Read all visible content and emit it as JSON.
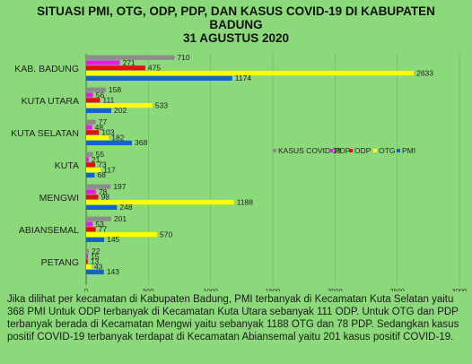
{
  "title_lines": [
    "SITUASI PMI, OTG, ODP, PDP, DAN KASUS COVID-19 DI KABUPATEN",
    "BADUNG",
    "31 AGUSTUS 2020"
  ],
  "chart_data": {
    "type": "bar",
    "orientation": "horizontal",
    "categories": [
      "KAB. BADUNG",
      "KUTA UTARA",
      "KUTA SELATAN",
      "KUTA",
      "MENGWI",
      "ABIANSEMAL",
      "PETANG"
    ],
    "series": [
      {
        "name": "KASUS COVID 19",
        "color": "#8c8c8c",
        "values": [
          710,
          158,
          77,
          55,
          197,
          201,
          22
        ]
      },
      {
        "name": "PDP",
        "color": "#e020e0",
        "values": [
          271,
          56,
          48,
          21,
          78,
          53,
          15
        ]
      },
      {
        "name": "ODP",
        "color": "#e01010",
        "values": [
          475,
          111,
          103,
          73,
          98,
          77,
          13
        ]
      },
      {
        "name": "OTG",
        "color": "#ffff00",
        "values": [
          2633,
          533,
          182,
          117,
          1188,
          570,
          43
        ]
      },
      {
        "name": "PMI",
        "color": "#1464c8",
        "values": [
          1174,
          202,
          368,
          68,
          248,
          145,
          143
        ]
      }
    ],
    "xlim": [
      0,
      3000
    ],
    "xticks": [
      0,
      500,
      1000,
      1500,
      2000,
      2500,
      3000
    ],
    "legend_position": "right",
    "grid": true
  },
  "caption": "Jika dilihat per kecamatan di Kabupaten Badung, PMI terbanyak di Kecamatan Kuta Selatan yaitu 368 PMI Untuk ODP terbanyak di Kecamatan Kuta Utara sebanyak 111 ODP. Untuk OTG dan PDP terbanyak berada di Kecamatan Mengwi yaitu sebanyak 1188 OTG dan 78 PDP. Sedangkan  kasus positif COVID-19 terbanyak terdapat di Kecamatan Abiansemal yaitu 201 kasus positif COVID-19."
}
